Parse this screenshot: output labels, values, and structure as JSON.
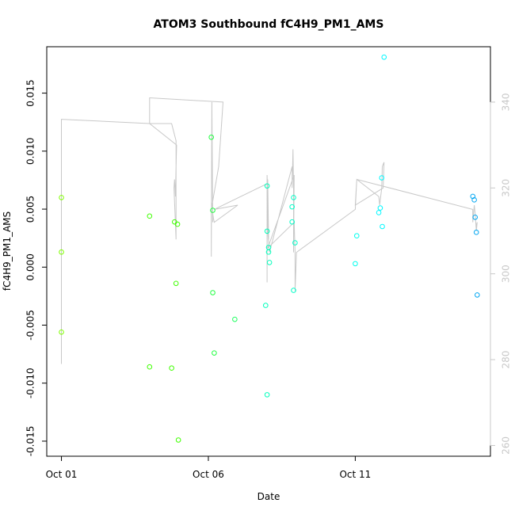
{
  "chart_data": {
    "type": "scatter",
    "title": "ATOM3 Southbound fC4H9_PM1_AMS",
    "xlabel": "Date",
    "ylabel": "fC4H9_PM1_AMS",
    "x_ticks": [
      {
        "value": 0,
        "label": "Oct 01"
      },
      {
        "value": 5,
        "label": "Oct 06"
      },
      {
        "value": 10,
        "label": "Oct 11"
      }
    ],
    "xlim": [
      -0.5,
      14.6
    ],
    "ylim": [
      -0.0163,
      0.019
    ],
    "y_ticks": [
      {
        "value": -0.015,
        "label": "-0.015"
      },
      {
        "value": -0.01,
        "label": "-0.010"
      },
      {
        "value": -0.005,
        "label": "-0.005"
      },
      {
        "value": 0.0,
        "label": "0.000"
      },
      {
        "value": 0.005,
        "label": "0.005"
      },
      {
        "value": 0.01,
        "label": "0.010"
      },
      {
        "value": 0.015,
        "label": "0.015"
      }
    ],
    "secondary_axis": {
      "position": "right",
      "ylim": [
        257.5,
        352.9
      ],
      "ticks": [
        {
          "value": 260,
          "label": "260"
        },
        {
          "value": 280,
          "label": "280"
        },
        {
          "value": 300,
          "label": "300"
        },
        {
          "value": 320,
          "label": "320"
        },
        {
          "value": 340,
          "label": "340"
        }
      ],
      "color": "#c8c8c8"
    },
    "points": [
      {
        "x": 0.0,
        "y": 0.006,
        "color": "#80ff00"
      },
      {
        "x": 0.0,
        "y": 0.0013,
        "color": "#80ff00"
      },
      {
        "x": 0.0,
        "y": -0.0056,
        "color": "#80ff00"
      },
      {
        "x": 3.0,
        "y": 0.0044,
        "color": "#3fff00"
      },
      {
        "x": 3.0,
        "y": -0.0086,
        "color": "#3fff00"
      },
      {
        "x": 3.75,
        "y": -0.0087,
        "color": "#3fff00"
      },
      {
        "x": 3.85,
        "y": 0.0039,
        "color": "#3fff00"
      },
      {
        "x": 3.9,
        "y": -0.0014,
        "color": "#3fff00"
      },
      {
        "x": 3.95,
        "y": 0.0037,
        "color": "#3fff00"
      },
      {
        "x": 3.98,
        "y": -0.0149,
        "color": "#3fff00"
      },
      {
        "x": 5.1,
        "y": 0.0112,
        "color": "#20ff40"
      },
      {
        "x": 5.15,
        "y": 0.0049,
        "color": "#20ff40"
      },
      {
        "x": 5.15,
        "y": -0.0022,
        "color": "#20ff40"
      },
      {
        "x": 5.2,
        "y": -0.0074,
        "color": "#20ff40"
      },
      {
        "x": 5.9,
        "y": -0.0045,
        "color": "#20ff60"
      },
      {
        "x": 7.0,
        "y": 0.007,
        "color": "#00ffbb"
      },
      {
        "x": 7.0,
        "y": 0.0031,
        "color": "#00ffbb"
      },
      {
        "x": 7.05,
        "y": 0.0017,
        "color": "#00ffbb"
      },
      {
        "x": 7.05,
        "y": 0.0013,
        "color": "#00ffbb"
      },
      {
        "x": 7.08,
        "y": 0.0004,
        "color": "#00ffbb"
      },
      {
        "x": 6.95,
        "y": -0.0033,
        "color": "#00ffbb"
      },
      {
        "x": 7.0,
        "y": -0.011,
        "color": "#00ffbb"
      },
      {
        "x": 7.85,
        "y": 0.0052,
        "color": "#00ffc8"
      },
      {
        "x": 7.9,
        "y": 0.006,
        "color": "#00ffc8"
      },
      {
        "x": 7.85,
        "y": 0.0039,
        "color": "#00ffc8"
      },
      {
        "x": 7.95,
        "y": 0.0021,
        "color": "#00ffc8"
      },
      {
        "x": 7.9,
        "y": -0.002,
        "color": "#00ffc8"
      },
      {
        "x": 10.05,
        "y": 0.0027,
        "color": "#00ffee"
      },
      {
        "x": 10.0,
        "y": 0.0003,
        "color": "#00ffee"
      },
      {
        "x": 10.8,
        "y": 0.0047,
        "color": "#00f8ff"
      },
      {
        "x": 10.85,
        "y": 0.0051,
        "color": "#00f8ff"
      },
      {
        "x": 10.9,
        "y": 0.0077,
        "color": "#00f8ff"
      },
      {
        "x": 10.92,
        "y": 0.0035,
        "color": "#00f8ff"
      },
      {
        "x": 10.98,
        "y": 0.0181,
        "color": "#00f8ff"
      },
      {
        "x": 14.0,
        "y": 0.0061,
        "color": "#00a6f2"
      },
      {
        "x": 14.05,
        "y": 0.0058,
        "color": "#00a6f2"
      },
      {
        "x": 14.08,
        "y": 0.0043,
        "color": "#00a6f2"
      },
      {
        "x": 14.12,
        "y": 0.003,
        "color": "#00a6f2"
      },
      {
        "x": 14.15,
        "y": -0.0024,
        "color": "#00a6f2"
      }
    ],
    "secondary_line": {
      "color": "#c8c8c8",
      "x": [
        0.0,
        0.0,
        3.0,
        3.75,
        3.9,
        3.9,
        3.83,
        3.85,
        3.88,
        3.9,
        3.92,
        3.0,
        3.0,
        5.5,
        5.35,
        5.1,
        5.1,
        5.12,
        5.15,
        5.15,
        5.17,
        5.2,
        6.0,
        5.2,
        7.0,
        7.0,
        7.0,
        7.05,
        7.02,
        7.02,
        7.08,
        7.85,
        7.85,
        7.88,
        7.9,
        7.9,
        7.92,
        7.02,
        7.92,
        7.95,
        7.95,
        8.0,
        10.0,
        10.05,
        10.8,
        10.83,
        10.9,
        10.92,
        10.98,
        10.95,
        10.0,
        10.05,
        14.0,
        14.0,
        14.05,
        14.08,
        14.12,
        14.15,
        14.1
      ],
      "y": [
        279,
        336,
        335,
        335,
        331,
        308,
        320,
        322,
        318,
        325,
        330,
        335,
        341,
        340,
        325,
        315,
        304,
        340,
        312,
        314,
        313,
        312,
        316,
        315,
        321,
        298,
        323,
        308,
        322,
        310,
        305,
        325,
        320,
        329,
        320,
        305,
        323,
        306,
        312,
        305,
        296,
        305,
        315,
        322,
        318,
        316,
        320,
        325,
        326,
        320,
        316,
        322,
        315,
        312,
        316,
        314,
        310,
        312,
        311
      ]
    }
  }
}
